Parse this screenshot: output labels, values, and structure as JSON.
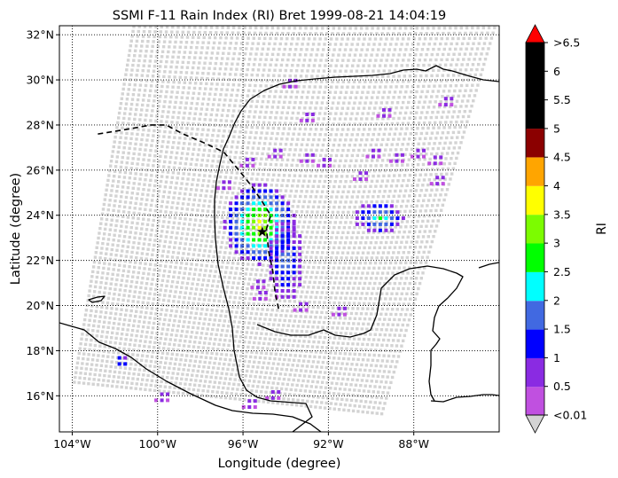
{
  "chart_data": {
    "type": "heatmap",
    "title": "SSMI F-11 Rain Index (RI) Bret 1999-08-21 14:04:19",
    "xlabel": "Longitude (degree)",
    "ylabel": "Latitude (degree)",
    "xlim": [
      -104.6,
      -84.0
    ],
    "ylim": [
      14.4,
      32.4
    ],
    "x_ticks": [
      {
        "value": -104,
        "label": "104°W"
      },
      {
        "value": -100,
        "label": "100°W"
      },
      {
        "value": -96,
        "label": "96°W"
      },
      {
        "value": -92,
        "label": "92°W"
      },
      {
        "value": -88,
        "label": "88°W"
      }
    ],
    "y_ticks": [
      {
        "value": 16,
        "label": "16°N"
      },
      {
        "value": 18,
        "label": "18°N"
      },
      {
        "value": 20,
        "label": "20°N"
      },
      {
        "value": 22,
        "label": "22°N"
      },
      {
        "value": 24,
        "label": "24°N"
      },
      {
        "value": 26,
        "label": "26°N"
      },
      {
        "value": 28,
        "label": "28°N"
      },
      {
        "value": 30,
        "label": "30°N"
      },
      {
        "value": 32,
        "label": "32°N"
      }
    ],
    "grid": true,
    "swath_color": "#d3d3d3",
    "storm_track": [
      [
        -102.8,
        27.6
      ],
      [
        -101.5,
        27.8
      ],
      [
        -100.3,
        28.0
      ],
      [
        -99.6,
        28.0
      ],
      [
        -98.8,
        27.6
      ],
      [
        -97.8,
        27.2
      ],
      [
        -96.9,
        26.8
      ],
      [
        -96.2,
        26.0
      ],
      [
        -95.6,
        25.3
      ],
      [
        -95.1,
        24.6
      ],
      [
        -94.7,
        24.0
      ],
      [
        -94.9,
        23.4
      ],
      [
        -94.8,
        22.4
      ],
      [
        -94.6,
        21.5
      ],
      [
        -94.5,
        20.6
      ],
      [
        -94.3,
        19.7
      ]
    ],
    "storm_center": {
      "lon": -95.1,
      "lat": 23.3
    },
    "rain_cells": [
      {
        "lon": -95.2,
        "lat": 23.6,
        "rx": 1.6,
        "ry": 1.7,
        "peak": 3.6
      },
      {
        "lon": -94.0,
        "lat": 22.0,
        "rx": 0.8,
        "ry": 1.8,
        "peak": 1.6
      },
      {
        "lon": -89.6,
        "lat": 23.9,
        "rx": 1.1,
        "ry": 0.7,
        "peak": 2.3
      },
      {
        "lon": -101.7,
        "lat": 17.5,
        "rx": 0.3,
        "ry": 0.3,
        "peak": 1.8
      }
    ],
    "light_rain_patches": [
      {
        "lon": -94.5,
        "lat": 26.6
      },
      {
        "lon": -93.0,
        "lat": 26.4
      },
      {
        "lon": -95.8,
        "lat": 26.2
      },
      {
        "lon": -88.8,
        "lat": 26.4
      },
      {
        "lon": -87.8,
        "lat": 26.6
      },
      {
        "lon": -87.0,
        "lat": 26.3
      },
      {
        "lon": -89.9,
        "lat": 26.6
      },
      {
        "lon": -93.0,
        "lat": 28.2
      },
      {
        "lon": -89.4,
        "lat": 28.4
      },
      {
        "lon": -95.2,
        "lat": 20.3
      },
      {
        "lon": -93.3,
        "lat": 19.8
      },
      {
        "lon": -91.5,
        "lat": 19.6
      },
      {
        "lon": -96.9,
        "lat": 25.2
      },
      {
        "lon": -90.5,
        "lat": 25.6
      },
      {
        "lon": -99.8,
        "lat": 15.8
      },
      {
        "lon": -95.7,
        "lat": 15.5
      },
      {
        "lon": -94.6,
        "lat": 15.9
      },
      {
        "lon": -86.9,
        "lat": 25.4
      },
      {
        "lon": -86.5,
        "lat": 28.9
      },
      {
        "lon": -93.8,
        "lat": 29.7
      },
      {
        "lon": -95.3,
        "lat": 20.8
      },
      {
        "lon": -92.2,
        "lat": 26.2
      }
    ],
    "colorbar": {
      "label": "RI",
      "bins": [
        {
          "from": 0.01,
          "to": 0.5,
          "color": "#c050e0"
        },
        {
          "from": 0.5,
          "to": 1,
          "color": "#8a2be2"
        },
        {
          "from": 1,
          "to": 1.5,
          "color": "#0000ff"
        },
        {
          "from": 1.5,
          "to": 2,
          "color": "#4169e1"
        },
        {
          "from": 2,
          "to": 2.5,
          "color": "#00ffff"
        },
        {
          "from": 2.5,
          "to": 3,
          "color": "#00ff00"
        },
        {
          "from": 3,
          "to": 3.5,
          "color": "#7cfc00"
        },
        {
          "from": 3.5,
          "to": 4,
          "color": "#ffff00"
        },
        {
          "from": 4,
          "to": 4.5,
          "color": "#ffa500"
        },
        {
          "from": 4.5,
          "to": 5,
          "color": "#8b0000"
        },
        {
          "from": 5,
          "to": 6.5,
          "color": "#000000"
        }
      ],
      "under_color": "#d3d3d3",
      "over_color": "#ff0000",
      "tick_labels": [
        "<0.01",
        "0.5",
        "1",
        "1.5",
        "2",
        "2.5",
        "3",
        "3.5",
        "4",
        "4.5",
        "5",
        "5.5",
        "6",
        ">6.5"
      ]
    }
  }
}
